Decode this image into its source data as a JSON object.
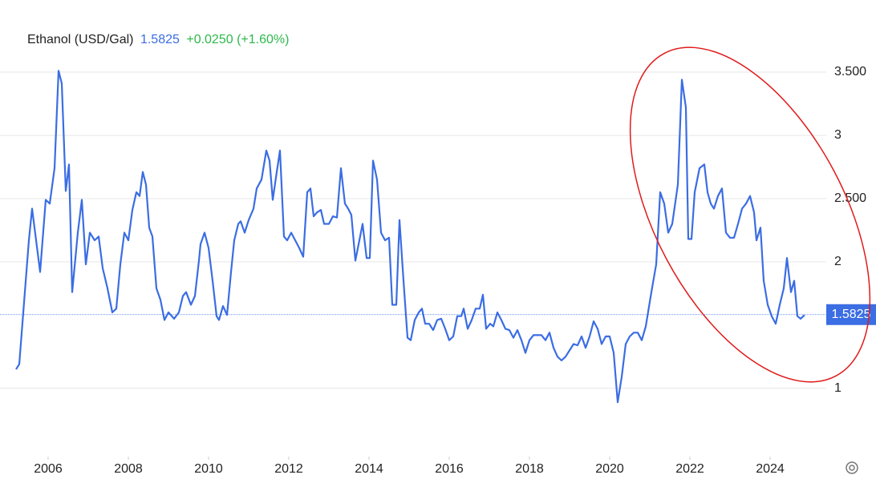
{
  "chart_data": {
    "type": "line",
    "title": "Ethanol (USD/Gal)",
    "last_price": {
      "value": 1.5825,
      "label": "1.5825"
    },
    "change_label": "+0.0250 (+1.60%)",
    "series": [
      {
        "name": "Ethanol (USD/Gal)",
        "color": "#3b6de3",
        "x": [
          2005.2,
          2005.28,
          2005.52,
          2005.6,
          2005.8,
          2005.94,
          2006.04,
          2006.16,
          2006.26,
          2006.34,
          2006.44,
          2006.52,
          2006.6,
          2006.74,
          2006.84,
          2006.94,
          2007.04,
          2007.16,
          2007.26,
          2007.36,
          2007.48,
          2007.6,
          2007.7,
          2007.8,
          2007.9,
          2008.0,
          2008.1,
          2008.2,
          2008.28,
          2008.36,
          2008.44,
          2008.52,
          2008.6,
          2008.7,
          2008.8,
          2008.9,
          2009.0,
          2009.14,
          2009.26,
          2009.36,
          2009.44,
          2009.56,
          2009.66,
          2009.76,
          2009.8,
          2009.9,
          2010.0,
          2010.1,
          2010.2,
          2010.26,
          2010.36,
          2010.46,
          2010.56,
          2010.64,
          2010.74,
          2010.8,
          2010.9,
          2011.0,
          2011.12,
          2011.2,
          2011.32,
          2011.44,
          2011.52,
          2011.6,
          2011.7,
          2011.78,
          2011.88,
          2011.96,
          2012.06,
          2012.16,
          2012.26,
          2012.36,
          2012.46,
          2012.54,
          2012.62,
          2012.7,
          2012.8,
          2012.88,
          2013.0,
          2013.1,
          2013.2,
          2013.3,
          2013.4,
          2013.48,
          2013.56,
          2013.66,
          2013.76,
          2013.84,
          2013.94,
          2014.02,
          2014.1,
          2014.2,
          2014.3,
          2014.4,
          2014.5,
          2014.58,
          2014.68,
          2014.76,
          2014.86,
          2014.96,
          2015.04,
          2015.14,
          2015.24,
          2015.32,
          2015.4,
          2015.5,
          2015.6,
          2015.7,
          2015.8,
          2015.9,
          2016.0,
          2016.1,
          2016.2,
          2016.3,
          2016.36,
          2016.46,
          2016.56,
          2016.66,
          2016.76,
          2016.84,
          2016.92,
          2017.02,
          2017.1,
          2017.2,
          2017.3,
          2017.4,
          2017.5,
          2017.6,
          2017.7,
          2017.8,
          2017.9,
          2018.0,
          2018.1,
          2018.2,
          2018.3,
          2018.4,
          2018.5,
          2018.6,
          2018.7,
          2018.8,
          2018.9,
          2019.0,
          2019.1,
          2019.2,
          2019.3,
          2019.4,
          2019.5,
          2019.6,
          2019.7,
          2019.8,
          2019.9,
          2020.0,
          2020.1,
          2020.2,
          2020.3,
          2020.4,
          2020.5,
          2020.6,
          2020.7,
          2020.8,
          2020.9,
          2021.04,
          2021.16,
          2021.26,
          2021.36,
          2021.46,
          2021.56,
          2021.7,
          2021.8,
          2021.9,
          2021.96,
          2022.04,
          2022.12,
          2022.24,
          2022.36,
          2022.44,
          2022.52,
          2022.6,
          2022.7,
          2022.8,
          2022.9,
          2023.0,
          2023.1,
          2023.2,
          2023.3,
          2023.4,
          2023.5,
          2023.6,
          2023.66,
          2023.76,
          2023.84,
          2023.94,
          2024.04,
          2024.14,
          2024.24,
          2024.34,
          2024.42,
          2024.52,
          2024.6,
          2024.68,
          2024.76,
          2024.86
        ],
        "values": [
          1.15,
          1.19,
          2.17,
          2.42,
          1.92,
          2.49,
          2.46,
          2.74,
          3.51,
          3.41,
          2.56,
          2.77,
          1.76,
          2.23,
          2.49,
          1.98,
          2.23,
          2.17,
          2.2,
          1.95,
          1.79,
          1.6,
          1.63,
          1.98,
          2.23,
          2.17,
          2.41,
          2.55,
          2.52,
          2.71,
          2.61,
          2.27,
          2.2,
          1.79,
          1.7,
          1.54,
          1.6,
          1.55,
          1.6,
          1.73,
          1.76,
          1.66,
          1.73,
          2.01,
          2.14,
          2.23,
          2.11,
          1.85,
          1.57,
          1.54,
          1.65,
          1.58,
          1.92,
          2.17,
          2.3,
          2.32,
          2.23,
          2.33,
          2.42,
          2.58,
          2.65,
          2.88,
          2.8,
          2.49,
          2.71,
          2.88,
          2.2,
          2.17,
          2.23,
          2.17,
          2.11,
          2.04,
          2.55,
          2.58,
          2.36,
          2.39,
          2.41,
          2.3,
          2.3,
          2.36,
          2.35,
          2.74,
          2.46,
          2.42,
          2.37,
          2.01,
          2.17,
          2.3,
          2.03,
          2.03,
          2.8,
          2.65,
          2.23,
          2.17,
          2.19,
          1.66,
          1.66,
          2.33,
          1.85,
          1.4,
          1.38,
          1.54,
          1.6,
          1.63,
          1.51,
          1.51,
          1.46,
          1.54,
          1.55,
          1.47,
          1.38,
          1.41,
          1.57,
          1.57,
          1.63,
          1.47,
          1.54,
          1.63,
          1.63,
          1.74,
          1.47,
          1.51,
          1.49,
          1.6,
          1.54,
          1.47,
          1.46,
          1.4,
          1.46,
          1.38,
          1.28,
          1.38,
          1.42,
          1.42,
          1.42,
          1.38,
          1.44,
          1.32,
          1.25,
          1.22,
          1.25,
          1.3,
          1.35,
          1.34,
          1.41,
          1.32,
          1.41,
          1.53,
          1.47,
          1.35,
          1.41,
          1.41,
          1.28,
          0.89,
          1.09,
          1.35,
          1.41,
          1.44,
          1.44,
          1.38,
          1.49,
          1.76,
          1.98,
          2.55,
          2.46,
          2.23,
          2.3,
          2.61,
          3.44,
          3.22,
          2.18,
          2.18,
          2.55,
          2.74,
          2.77,
          2.55,
          2.46,
          2.42,
          2.52,
          2.58,
          2.23,
          2.19,
          2.19,
          2.3,
          2.42,
          2.46,
          2.52,
          2.39,
          2.17,
          2.27,
          1.85,
          1.66,
          1.57,
          1.51,
          1.66,
          1.79,
          2.03,
          1.76,
          1.85,
          1.57,
          1.55,
          1.58
        ]
      }
    ],
    "xlim": [
      2004.8,
      2025.4
    ],
    "xticks": [
      2006,
      2008,
      2010,
      2012,
      2014,
      2016,
      2018,
      2020,
      2022,
      2024
    ],
    "ylim": [
      0.46,
      4.07
    ],
    "yticks": [
      1,
      2,
      {
        "value": 2.5,
        "label": "2.500"
      },
      3,
      {
        "value": 3.5,
        "label": "3.500"
      }
    ],
    "grid": true
  }
}
